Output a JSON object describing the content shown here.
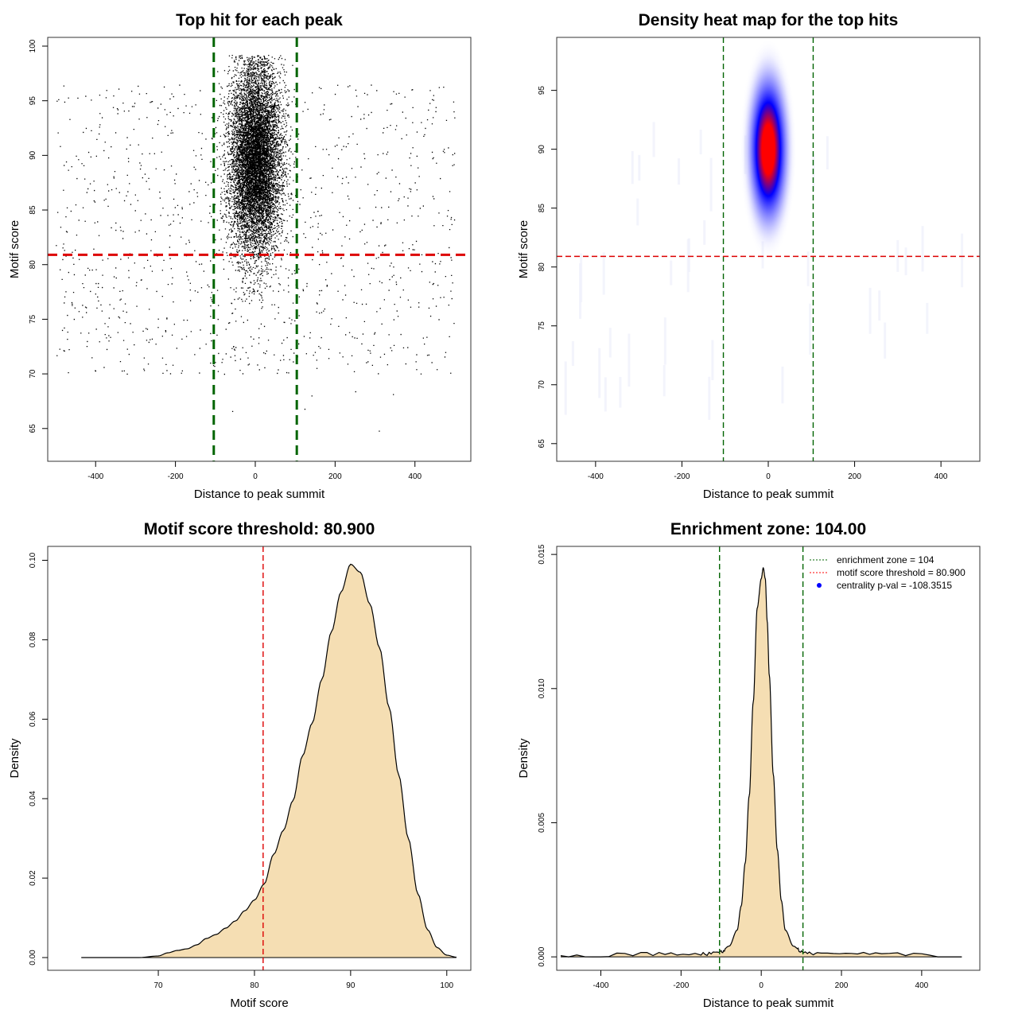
{
  "chart_data": [
    {
      "type": "scatter",
      "title": "Top hit for each peak",
      "xlabel": "Distance to peak summit",
      "ylabel": "Motif score",
      "xlim": [
        -520,
        540
      ],
      "ylim": [
        62.0,
        100.8
      ],
      "xticks": [
        -400,
        -200,
        0,
        200,
        400
      ],
      "yticks": [
        65,
        70,
        75,
        80,
        85,
        90,
        95,
        100
      ],
      "vlines": [
        -104,
        104
      ],
      "hline": 80.9,
      "background_points_range": {
        "x": [
          -500,
          500
        ],
        "y": [
          63,
          97
        ]
      },
      "peak_cluster": {
        "x_center": 0,
        "x_sd": 32,
        "y_center": 89.5,
        "y_sd": 4.3,
        "y_max": 99.2
      }
    },
    {
      "type": "heatmap",
      "title": "Density heat map for the top hits",
      "xlabel": "Distance to peak summit",
      "ylabel": "Motif score",
      "xlim": [
        -490,
        490
      ],
      "ylim": [
        63.5,
        99.5
      ],
      "xticks": [
        -400,
        -200,
        0,
        200,
        400
      ],
      "yticks": [
        65,
        70,
        75,
        80,
        85,
        90,
        95
      ],
      "vlines": [
        -104,
        104
      ],
      "hline": 80.9,
      "hotspot": {
        "x": 0,
        "y": 90
      },
      "colors": [
        "#ffffff",
        "#0000ff",
        "#ff0000"
      ]
    },
    {
      "type": "area",
      "title": "Motif score threshold: 80.900",
      "xlabel": "Motif score",
      "ylabel": "Density",
      "xlim": [
        58.5,
        102.5
      ],
      "ylim": [
        -0.0032,
        0.1035
      ],
      "xticks": [
        70,
        80,
        90,
        100
      ],
      "yticks": [
        0.0,
        0.02,
        0.04,
        0.06,
        0.08,
        0.1
      ],
      "ytick_labels": [
        "0.00",
        "0.02",
        "0.04",
        "0.06",
        "0.08",
        "0.10"
      ],
      "vline": 80.9,
      "fill": "#f5deb3",
      "x": [
        62,
        65,
        68,
        70,
        71,
        72,
        73,
        74,
        75,
        76,
        77,
        78,
        79,
        80,
        81,
        82,
        83,
        84,
        85,
        86,
        87,
        88,
        89,
        90,
        91,
        92,
        93,
        94,
        95,
        96,
        97,
        98,
        99,
        100,
        101
      ],
      "y": [
        0.0,
        0.0,
        0.0,
        0.0004,
        0.0012,
        0.0018,
        0.0022,
        0.0032,
        0.0048,
        0.0058,
        0.0074,
        0.0092,
        0.0118,
        0.0145,
        0.0185,
        0.026,
        0.032,
        0.0395,
        0.0508,
        0.059,
        0.07,
        0.082,
        0.092,
        0.099,
        0.097,
        0.089,
        0.078,
        0.063,
        0.046,
        0.03,
        0.016,
        0.007,
        0.0025,
        0.0006,
        0.0001
      ]
    },
    {
      "type": "area",
      "title": "Enrichment zone: 104.00",
      "xlabel": "Distance to peak summit",
      "ylabel": "Density",
      "xlim": [
        -510,
        545
      ],
      "ylim": [
        -0.0005,
        0.0153
      ],
      "xticks": [
        -400,
        -200,
        0,
        200,
        400
      ],
      "yticks": [
        0.0,
        0.005,
        0.01,
        0.015
      ],
      "ytick_labels": [
        "0.000",
        "0.005",
        "0.010",
        "0.015"
      ],
      "vlines": [
        -104,
        104
      ],
      "fill": "#f5deb3",
      "baseline_noise": 0.0001,
      "x": [
        -500,
        -300,
        -150,
        -100,
        -80,
        -60,
        -50,
        -40,
        -30,
        -20,
        -10,
        0,
        5,
        10,
        15,
        20,
        30,
        40,
        50,
        60,
        80,
        100,
        150,
        300,
        500
      ],
      "y": [
        0.0,
        0.0001,
        0.0001,
        0.0002,
        0.0004,
        0.001,
        0.0019,
        0.0035,
        0.006,
        0.0095,
        0.013,
        0.0141,
        0.0145,
        0.0141,
        0.0125,
        0.0105,
        0.0068,
        0.004,
        0.0021,
        0.001,
        0.0004,
        0.0002,
        0.0001,
        0.0001,
        0.0
      ]
    }
  ],
  "legend": {
    "items": [
      {
        "label": "enrichment zone = 104",
        "color": "#006400",
        "kind": "line"
      },
      {
        "label": "motif score threshold = 80.900",
        "color": "#ff0000",
        "kind": "line"
      },
      {
        "label": "centrality p-val = -108.3515",
        "color": "#0000ff",
        "kind": "point"
      }
    ]
  }
}
